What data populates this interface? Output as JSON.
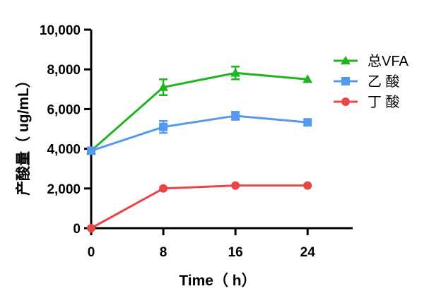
{
  "chart_data": {
    "type": "line",
    "title": "",
    "xlabel": "Time（ h）",
    "ylabel": "产酸量（ ug/mL）",
    "x": [
      0,
      8,
      16,
      24
    ],
    "xlim": [
      0,
      29
    ],
    "xticks": [
      "0",
      "8",
      "16",
      "24"
    ],
    "ylim": [
      0,
      10000
    ],
    "yticks": [
      "0",
      "2,000",
      "4,000",
      "6,000",
      "8,000",
      "10,000"
    ],
    "grid": false,
    "legend_position": "top-right",
    "series": [
      {
        "name": "总VFA",
        "color": "#1fb51f",
        "marker": "triangle",
        "values": [
          3900,
          7100,
          7820,
          7500
        ],
        "errors": [
          0,
          400,
          320,
          0
        ]
      },
      {
        "name": "乙 酸",
        "color": "#5599ee",
        "marker": "square",
        "values": [
          3900,
          5100,
          5660,
          5330
        ],
        "errors": [
          0,
          300,
          200,
          0
        ]
      },
      {
        "name": "丁 酸",
        "color": "#e84545",
        "marker": "circle",
        "values": [
          0,
          2000,
          2150,
          2150
        ],
        "errors": [
          0,
          0,
          0,
          0
        ]
      }
    ]
  }
}
